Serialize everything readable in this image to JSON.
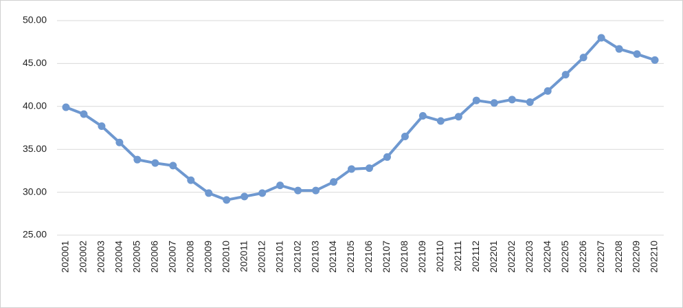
{
  "chart_data": {
    "type": "line",
    "categories": [
      "202001",
      "202002",
      "202003",
      "202004",
      "202005",
      "202006",
      "202007",
      "202008",
      "202009",
      "202010",
      "202011",
      "202012",
      "202101",
      "202102",
      "202103",
      "202104",
      "202105",
      "202106",
      "202107",
      "202108",
      "202109",
      "202110",
      "202111",
      "202112",
      "202201",
      "202202",
      "202203",
      "202204",
      "202205",
      "202206",
      "202207",
      "202208",
      "202209",
      "202210"
    ],
    "values": [
      39.9,
      39.1,
      37.7,
      35.8,
      33.8,
      33.4,
      33.1,
      31.4,
      29.9,
      29.1,
      29.5,
      29.9,
      30.8,
      30.2,
      30.2,
      31.2,
      32.7,
      32.8,
      34.1,
      36.5,
      38.9,
      38.3,
      38.8,
      40.7,
      40.4,
      40.8,
      40.5,
      41.8,
      43.7,
      45.7,
      48.0,
      46.7,
      46.1,
      45.4
    ],
    "color": "#6e98d0",
    "ylim": [
      25,
      50
    ],
    "yticks": [
      {
        "value": 25,
        "label": "25.00"
      },
      {
        "value": 30,
        "label": "30.00"
      },
      {
        "value": 35,
        "label": "35.00"
      },
      {
        "value": 40,
        "label": "40.00"
      },
      {
        "value": 45,
        "label": "45.00"
      },
      {
        "value": 50,
        "label": "50.00"
      }
    ],
    "grid": true
  }
}
